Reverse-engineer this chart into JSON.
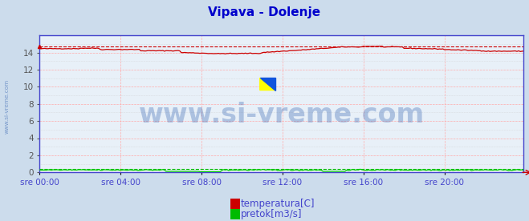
{
  "title": "Vipava - Dolenje",
  "title_color": "#0000cc",
  "title_fontsize": 11,
  "bg_color": "#ccdcec",
  "plot_bg_color": "#e8f0f8",
  "x_labels": [
    "sre 00:00",
    "sre 04:00",
    "sre 08:00",
    "sre 12:00",
    "sre 16:00",
    "sre 20:00"
  ],
  "x_ticks": [
    0,
    48,
    96,
    144,
    192,
    240
  ],
  "x_max": 287,
  "yticks": [
    0,
    2,
    4,
    6,
    8,
    10,
    12,
    14
  ],
  "ymin": 0,
  "ymax": 16,
  "ylabel_color": "#555555",
  "grid_color_h": "#ffaaaa",
  "grid_color_v": "#ffaaaa",
  "dot_grid_color": "#cccccc",
  "temp_color": "#cc0000",
  "temp_dashed_color": "#cc0000",
  "pretok_color": "#00cc00",
  "pretok_dashed_color": "#00bb00",
  "axis_color": "#4444cc",
  "watermark_text": "www.si-vreme.com",
  "watermark_color": "#2255aa",
  "watermark_alpha": 0.3,
  "watermark_fontsize": 24,
  "sidewater_text": "www.si-vreme.com",
  "sidewater_color": "#2255aa",
  "sidewater_alpha": 0.5,
  "legend_temp_color": "#cc0000",
  "legend_pretok_color": "#00bb00",
  "legend_text_color": "#4444cc",
  "legend_fontsize": 8.5,
  "temp_max_value": 14.75,
  "pretok_near_zero": 0.28
}
